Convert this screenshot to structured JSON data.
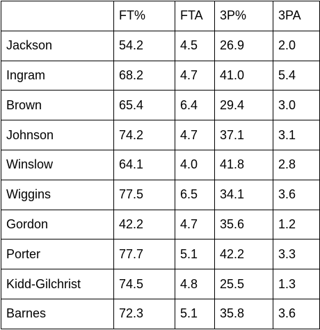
{
  "table": {
    "headers": [
      "",
      "FT%",
      "FTA",
      "3P%",
      "3PA"
    ],
    "rows": [
      [
        "Jackson",
        "54.2",
        "4.5",
        "26.9",
        "2.0"
      ],
      [
        "Ingram",
        "68.2",
        "4.7",
        "41.0",
        "5.4"
      ],
      [
        "Brown",
        "65.4",
        "6.4",
        "29.4",
        "3.0"
      ],
      [
        "Johnson",
        "74.2",
        "4.7",
        "37.1",
        "3.1"
      ],
      [
        "Winslow",
        "64.1",
        "4.0",
        "41.8",
        "2.8"
      ],
      [
        "Wiggins",
        "77.5",
        "6.5",
        "34.1",
        "3.6"
      ],
      [
        "Gordon",
        "42.2",
        "4.7",
        "35.6",
        "1.2"
      ],
      [
        "Porter",
        "77.7",
        "5.1",
        "42.2",
        "3.3"
      ],
      [
        "Kidd-Gilchrist",
        "74.5",
        "4.8",
        "25.5",
        "1.3"
      ],
      [
        "Barnes",
        "72.3",
        "5.1",
        "35.8",
        "3.6"
      ]
    ]
  }
}
